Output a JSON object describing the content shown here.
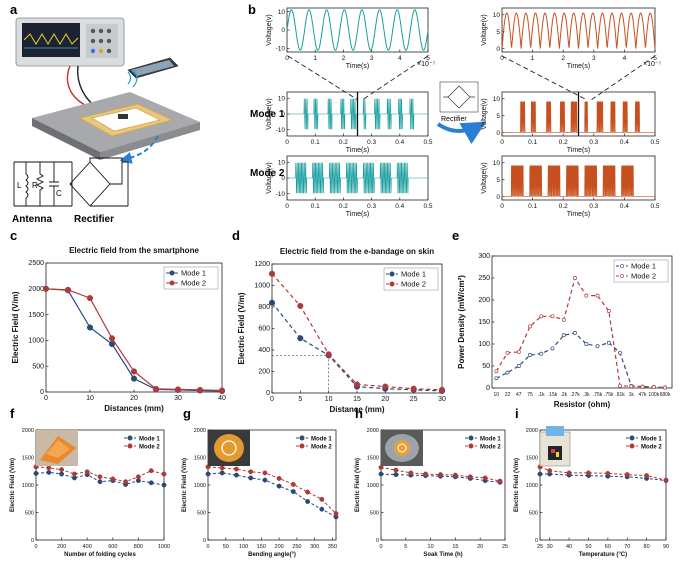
{
  "colors": {
    "teal": "#1a9e9e",
    "orange": "#c8501e",
    "mode1": "#2b4a7a",
    "mode2": "#b03a3a",
    "axis": "#222222"
  },
  "labels": {
    "panel_a": "a",
    "panel_b": "b",
    "panel_c": "c",
    "panel_d": "d",
    "panel_e": "e",
    "panel_f": "f",
    "panel_g": "g",
    "panel_h": "h",
    "panel_i": "i",
    "mode1_row": "Mode 1",
    "mode2_row": "Mode 2",
    "antenna": "Antenna",
    "rectifier": "Rectifier",
    "rectifier_small": "Rectifier",
    "circuit_L": "L",
    "circuit_R": "R",
    "circuit_C": "C",
    "exp7": "×10⁻⁷"
  },
  "chart_data": [
    {
      "id": "b_top_left",
      "type": "line",
      "ylabel": "Voltage(v)",
      "xlabel": "Time(s)",
      "xlim": [
        0,
        5
      ],
      "ylim": [
        -12,
        12
      ],
      "xticks": [
        "0",
        "1",
        "2",
        "3",
        "4",
        "5"
      ],
      "yticks": [
        "-10",
        "0",
        "10"
      ],
      "signal": "sine",
      "cycles": 8,
      "color": "teal"
    },
    {
      "id": "b_top_right",
      "type": "line",
      "ylabel": "Voltage(v)",
      "xlabel": "Time(s)",
      "xlim": [
        0,
        5
      ],
      "ylim": [
        -1,
        12
      ],
      "xticks": [
        "0",
        "1",
        "2",
        "3",
        "4",
        "5"
      ],
      "yticks": [
        "0",
        "5",
        "10"
      ],
      "signal": "rectified",
      "cycles": 16,
      "color": "orange"
    },
    {
      "id": "b_m1_left",
      "type": "line",
      "ylabel": "Voltage(v)",
      "xlabel": "Time(s)",
      "xlim": [
        0,
        0.5
      ],
      "ylim": [
        -14,
        14
      ],
      "xticks": [
        "0",
        "0.1",
        "0.2",
        "0.3",
        "0.4",
        "0.5"
      ],
      "yticks": [
        "-10",
        "0",
        "10"
      ],
      "signal": "bursts",
      "mode": 1,
      "color": "teal"
    },
    {
      "id": "b_m1_right",
      "type": "line",
      "ylabel": "Voltage(v)",
      "xlabel": "Time(s)",
      "xlim": [
        0,
        0.5
      ],
      "ylim": [
        -1,
        12
      ],
      "xticks": [
        "0",
        "0.1",
        "0.2",
        "0.3",
        "0.4",
        "0.5"
      ],
      "yticks": [
        "0",
        "5",
        "10"
      ],
      "signal": "rect_bursts",
      "mode": 1,
      "color": "orange"
    },
    {
      "id": "b_m2_left",
      "type": "line",
      "ylabel": "Voltage(v)",
      "xlabel": "Time(s)",
      "xlim": [
        0,
        0.5
      ],
      "ylim": [
        -14,
        14
      ],
      "xticks": [
        "0",
        "0.1",
        "0.2",
        "0.3",
        "0.4",
        "0.5"
      ],
      "yticks": [
        "-10",
        "0",
        "10"
      ],
      "signal": "bursts",
      "mode": 2,
      "color": "teal"
    },
    {
      "id": "b_m2_right",
      "type": "line",
      "ylabel": "Voltage(v)",
      "xlabel": "Time(s)",
      "xlim": [
        0,
        0.5
      ],
      "ylim": [
        -1,
        12
      ],
      "xticks": [
        "0",
        "0.1",
        "0.2",
        "0.3",
        "0.4",
        "0.5"
      ],
      "yticks": [
        "0",
        "5",
        "10"
      ],
      "signal": "rect_bursts",
      "mode": 2,
      "color": "orange"
    },
    {
      "id": "c",
      "type": "line",
      "title": "Electric field from the smartphone",
      "xlabel": "Distances (mm)",
      "ylabel": "Electric Field (V/m)",
      "xlim": [
        0,
        40
      ],
      "ylim": [
        0,
        2500
      ],
      "xticks": [
        "0",
        "10",
        "20",
        "30",
        "40"
      ],
      "yticks": [
        "0",
        "500",
        "1000",
        "1500",
        "2000",
        "2500"
      ],
      "x": [
        0,
        5,
        10,
        15,
        20,
        25,
        30,
        35,
        40
      ],
      "series": [
        {
          "name": "Mode 1",
          "values": [
            2000,
            1970,
            1250,
            930,
            260,
            50,
            40,
            30,
            20
          ]
        },
        {
          "name": "Mode 2",
          "values": [
            2000,
            1980,
            1820,
            1040,
            400,
            60,
            50,
            40,
            30
          ]
        }
      ],
      "legend": [
        "Mode 1",
        "Mode 2"
      ],
      "dash": false
    },
    {
      "id": "d",
      "type": "line",
      "title": "Electric field from the e-bandage on skin",
      "xlabel": "Distance (mm)",
      "ylabel": "Electric Field (V/m)",
      "xlim": [
        0,
        30
      ],
      "ylim": [
        0,
        1200
      ],
      "xticks": [
        "0",
        "5",
        "10",
        "15",
        "20",
        "25",
        "30"
      ],
      "yticks": [
        "0",
        "200",
        "400",
        "600",
        "800",
        "1000",
        "1200"
      ],
      "x": [
        0,
        5,
        10,
        15,
        20,
        25,
        30
      ],
      "series": [
        {
          "name": "Mode 1",
          "values": [
            840,
            510,
            350,
            60,
            40,
            30,
            20
          ]
        },
        {
          "name": "Mode 2",
          "values": [
            1110,
            810,
            360,
            80,
            60,
            40,
            30
          ]
        }
      ],
      "legend": [
        "Mode 1",
        "Mode 2"
      ],
      "dash": true,
      "guide": {
        "x": 10,
        "y": 350
      }
    },
    {
      "id": "e",
      "type": "line",
      "xlabel": "Resistor (ohm)",
      "ylabel": "Power Density (mW/cm²)",
      "xlim": [
        0,
        21
      ],
      "ylim": [
        0,
        300
      ],
      "yticks": [
        "0",
        "50",
        "100",
        "150",
        "200",
        "250",
        "300"
      ],
      "categories": [
        "10",
        "22",
        "47",
        "75",
        ".1k",
        ".15k",
        ".2k",
        ".27k",
        ".3k",
        ".75k",
        ".75k",
        ".91k",
        "1k",
        "47k",
        "100k",
        "680k"
      ],
      "x": [
        0,
        1,
        2,
        3,
        4,
        5,
        6,
        7,
        8,
        9,
        10,
        11,
        12,
        13,
        14,
        15
      ],
      "series": [
        {
          "name": "Mode 1",
          "values": [
            22,
            35,
            50,
            75,
            78,
            90,
            120,
            125,
            100,
            95,
            103,
            80,
            5,
            3,
            2,
            1
          ]
        },
        {
          "name": "Mode 2",
          "values": [
            38,
            80,
            82,
            140,
            163,
            163,
            155,
            250,
            210,
            210,
            175,
            5,
            4,
            3,
            2,
            1
          ]
        }
      ],
      "legend": [
        "Mode 1",
        "Mode 2"
      ],
      "dash": true,
      "hollow": true
    },
    {
      "id": "f",
      "type": "line",
      "xlabel": "Number of folding cycles",
      "ylabel": "Electric Field (V/m)",
      "xlim": [
        0,
        1000
      ],
      "ylim": [
        0,
        2000
      ],
      "xticks": [
        "0",
        "200",
        "400",
        "600",
        "800",
        "1000"
      ],
      "yticks": [
        "0",
        "500",
        "1000",
        "1500",
        "2000"
      ],
      "x": [
        0,
        100,
        200,
        300,
        400,
        500,
        600,
        700,
        800,
        900,
        1000
      ],
      "series": [
        {
          "name": "Mode 1",
          "values": [
            1210,
            1230,
            1200,
            1130,
            1190,
            1060,
            1080,
            1010,
            1080,
            1040,
            1000
          ]
        },
        {
          "name": "Mode 2",
          "values": [
            1330,
            1310,
            1280,
            1200,
            1240,
            1150,
            1110,
            1060,
            1150,
            1260,
            1200
          ]
        }
      ],
      "legend": [
        "Mode 1",
        "Mode 2"
      ],
      "dash": true
    },
    {
      "id": "g",
      "type": "line",
      "xlabel": "Bending angle(°)",
      "ylabel": "Electric Field (V/m)",
      "xlim": [
        0,
        360
      ],
      "ylim": [
        0,
        2000
      ],
      "xticks": [
        "0",
        "50",
        "100",
        "150",
        "200",
        "250",
        "300",
        "350"
      ],
      "yticks": [
        "0",
        "500",
        "1000",
        "1500",
        "2000"
      ],
      "x": [
        0,
        40,
        80,
        120,
        160,
        200,
        240,
        280,
        320,
        360
      ],
      "series": [
        {
          "name": "Mode 1",
          "values": [
            1200,
            1220,
            1180,
            1130,
            1090,
            980,
            880,
            700,
            560,
            420
          ]
        },
        {
          "name": "Mode 2",
          "values": [
            1330,
            1310,
            1290,
            1240,
            1220,
            1120,
            1010,
            870,
            740,
            480
          ]
        }
      ],
      "legend": [
        "Mode 1",
        "Mode 2"
      ],
      "dash": true
    },
    {
      "id": "h",
      "type": "line",
      "xlabel": "Soak Time (h)",
      "ylabel": "Electric Field (V/m)",
      "xlim": [
        0,
        25
      ],
      "ylim": [
        0,
        2000
      ],
      "xticks": [
        "0",
        "5",
        "10",
        "15",
        "20",
        "25"
      ],
      "yticks": [
        "0",
        "500",
        "1000",
        "1500",
        "2000"
      ],
      "x": [
        0,
        3,
        6,
        9,
        12,
        15,
        18,
        21,
        24
      ],
      "series": [
        {
          "name": "Mode 1",
          "values": [
            1200,
            1190,
            1180,
            1170,
            1160,
            1150,
            1120,
            1080,
            1050
          ]
        },
        {
          "name": "Mode 2",
          "values": [
            1320,
            1270,
            1220,
            1200,
            1190,
            1180,
            1150,
            1130,
            1070
          ]
        }
      ],
      "legend": [
        "Mode 1",
        "Mode 2"
      ],
      "dash": true
    },
    {
      "id": "i",
      "type": "line",
      "xlabel": "Temperature (°C)",
      "ylabel": "Electric Field (V/m)",
      "xlim": [
        25,
        90
      ],
      "ylim": [
        0,
        2000
      ],
      "xticks": [
        "25",
        "30",
        "40",
        "50",
        "60",
        "70",
        "80",
        "90"
      ],
      "yticks": [
        "0",
        "500",
        "1000",
        "1500",
        "2000"
      ],
      "x": [
        25,
        30,
        40,
        50,
        60,
        70,
        80,
        90
      ],
      "series": [
        {
          "name": "Mode 1",
          "values": [
            1200,
            1200,
            1180,
            1170,
            1160,
            1150,
            1120,
            1080
          ]
        },
        {
          "name": "Mode 2",
          "values": [
            1330,
            1260,
            1220,
            1220,
            1210,
            1190,
            1170,
            1090
          ]
        }
      ],
      "legend": [
        "Mode 1",
        "Mode 2"
      ],
      "dash": true
    }
  ]
}
